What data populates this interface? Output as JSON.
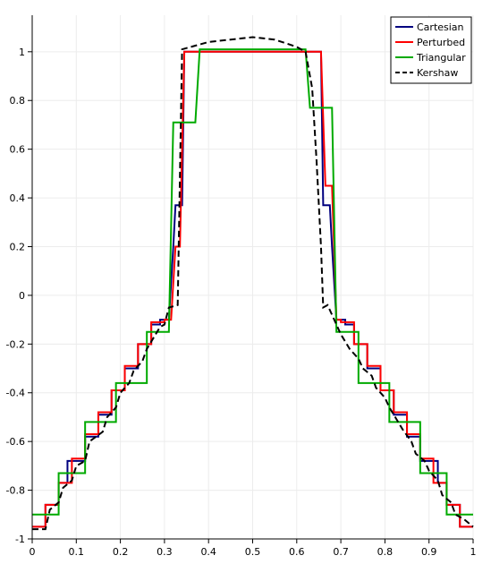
{
  "chart_data": {
    "type": "line",
    "title": "",
    "xlabel": "",
    "ylabel": "",
    "xlim": [
      0,
      1
    ],
    "ylim": [
      -1,
      1.15
    ],
    "x_ticks": [
      0,
      0.1,
      0.2,
      0.3,
      0.4,
      0.5,
      0.6,
      0.7,
      0.8,
      0.9,
      1
    ],
    "x_tick_labels": [
      "0",
      "0.1",
      "0.2",
      "0.3",
      "0.4",
      "0.5",
      "0.6",
      "0.7",
      "0.8",
      "0.9",
      "1"
    ],
    "y_ticks": [
      -1,
      -0.8,
      -0.6,
      -0.4,
      -0.2,
      0,
      0.2,
      0.4,
      0.6,
      0.8,
      1
    ],
    "y_tick_labels": [
      "-1",
      "-0.8",
      "-0.6",
      "-0.4",
      "-0.2",
      "0",
      "0.2",
      "0.4",
      "0.6",
      "0.8",
      "1"
    ],
    "grid": true,
    "legend_position": "top-right",
    "series": [
      {
        "name": "Cartesian",
        "color": "#00007f",
        "dash": "solid",
        "points": [
          [
            0,
            -0.95
          ],
          [
            0.03,
            -0.95
          ],
          [
            0.03,
            -0.86
          ],
          [
            0.06,
            -0.86
          ],
          [
            0.06,
            -0.77
          ],
          [
            0.08,
            -0.77
          ],
          [
            0.08,
            -0.68
          ],
          [
            0.12,
            -0.68
          ],
          [
            0.12,
            -0.58
          ],
          [
            0.15,
            -0.58
          ],
          [
            0.15,
            -0.49
          ],
          [
            0.18,
            -0.49
          ],
          [
            0.18,
            -0.39
          ],
          [
            0.21,
            -0.39
          ],
          [
            0.21,
            -0.3
          ],
          [
            0.24,
            -0.3
          ],
          [
            0.24,
            -0.2
          ],
          [
            0.27,
            -0.2
          ],
          [
            0.27,
            -0.12
          ],
          [
            0.29,
            -0.12
          ],
          [
            0.29,
            -0.1
          ],
          [
            0.31,
            -0.1
          ],
          [
            0.32,
            0.2
          ],
          [
            0.325,
            0.37
          ],
          [
            0.34,
            0.37
          ],
          [
            0.345,
            1.0
          ],
          [
            0.655,
            1.0
          ],
          [
            0.66,
            0.37
          ],
          [
            0.675,
            0.37
          ],
          [
            0.68,
            0.2
          ],
          [
            0.69,
            -0.1
          ],
          [
            0.71,
            -0.1
          ],
          [
            0.71,
            -0.12
          ],
          [
            0.73,
            -0.12
          ],
          [
            0.73,
            -0.2
          ],
          [
            0.76,
            -0.2
          ],
          [
            0.76,
            -0.3
          ],
          [
            0.79,
            -0.3
          ],
          [
            0.79,
            -0.39
          ],
          [
            0.82,
            -0.39
          ],
          [
            0.82,
            -0.49
          ],
          [
            0.85,
            -0.49
          ],
          [
            0.85,
            -0.58
          ],
          [
            0.88,
            -0.58
          ],
          [
            0.88,
            -0.68
          ],
          [
            0.92,
            -0.68
          ],
          [
            0.92,
            -0.77
          ],
          [
            0.94,
            -0.77
          ],
          [
            0.94,
            -0.86
          ],
          [
            0.97,
            -0.86
          ],
          [
            0.97,
            -0.95
          ],
          [
            1,
            -0.95
          ]
        ]
      },
      {
        "name": "Perturbed",
        "color": "#ff0000",
        "dash": "solid",
        "points": [
          [
            0,
            -0.95
          ],
          [
            0.03,
            -0.95
          ],
          [
            0.03,
            -0.86
          ],
          [
            0.06,
            -0.86
          ],
          [
            0.06,
            -0.77
          ],
          [
            0.09,
            -0.77
          ],
          [
            0.09,
            -0.67
          ],
          [
            0.12,
            -0.67
          ],
          [
            0.12,
            -0.57
          ],
          [
            0.15,
            -0.57
          ],
          [
            0.15,
            -0.48
          ],
          [
            0.18,
            -0.48
          ],
          [
            0.18,
            -0.39
          ],
          [
            0.21,
            -0.39
          ],
          [
            0.21,
            -0.29
          ],
          [
            0.24,
            -0.29
          ],
          [
            0.24,
            -0.2
          ],
          [
            0.27,
            -0.2
          ],
          [
            0.27,
            -0.11
          ],
          [
            0.3,
            -0.11
          ],
          [
            0.3,
            -0.1
          ],
          [
            0.315,
            -0.1
          ],
          [
            0.325,
            0.2
          ],
          [
            0.335,
            0.2
          ],
          [
            0.345,
            1.0
          ],
          [
            0.655,
            1.0
          ],
          [
            0.665,
            0.45
          ],
          [
            0.68,
            0.45
          ],
          [
            0.69,
            -0.1
          ],
          [
            0.7,
            -0.1
          ],
          [
            0.7,
            -0.11
          ],
          [
            0.73,
            -0.11
          ],
          [
            0.73,
            -0.2
          ],
          [
            0.76,
            -0.2
          ],
          [
            0.76,
            -0.29
          ],
          [
            0.79,
            -0.29
          ],
          [
            0.79,
            -0.39
          ],
          [
            0.82,
            -0.39
          ],
          [
            0.82,
            -0.48
          ],
          [
            0.85,
            -0.48
          ],
          [
            0.85,
            -0.57
          ],
          [
            0.88,
            -0.57
          ],
          [
            0.88,
            -0.67
          ],
          [
            0.91,
            -0.67
          ],
          [
            0.91,
            -0.77
          ],
          [
            0.94,
            -0.77
          ],
          [
            0.94,
            -0.86
          ],
          [
            0.97,
            -0.86
          ],
          [
            0.97,
            -0.95
          ],
          [
            1,
            -0.95
          ]
        ]
      },
      {
        "name": "Triangular",
        "color": "#00aa00",
        "dash": "solid",
        "points": [
          [
            0,
            -0.9
          ],
          [
            0.06,
            -0.9
          ],
          [
            0.06,
            -0.73
          ],
          [
            0.12,
            -0.73
          ],
          [
            0.12,
            -0.52
          ],
          [
            0.19,
            -0.52
          ],
          [
            0.19,
            -0.36
          ],
          [
            0.26,
            -0.36
          ],
          [
            0.26,
            -0.15
          ],
          [
            0.31,
            -0.15
          ],
          [
            0.32,
            0.71
          ],
          [
            0.37,
            0.71
          ],
          [
            0.38,
            1.01
          ],
          [
            0.62,
            1.01
          ],
          [
            0.63,
            0.77
          ],
          [
            0.68,
            0.77
          ],
          [
            0.69,
            -0.15
          ],
          [
            0.74,
            -0.15
          ],
          [
            0.74,
            -0.36
          ],
          [
            0.81,
            -0.36
          ],
          [
            0.81,
            -0.52
          ],
          [
            0.88,
            -0.52
          ],
          [
            0.88,
            -0.73
          ],
          [
            0.94,
            -0.73
          ],
          [
            0.94,
            -0.9
          ],
          [
            1,
            -0.9
          ]
        ]
      },
      {
        "name": "Kershaw",
        "color": "#000000",
        "dash": "dashed",
        "points": [
          [
            0,
            -0.96
          ],
          [
            0.03,
            -0.96
          ],
          [
            0.04,
            -0.88
          ],
          [
            0.06,
            -0.85
          ],
          [
            0.07,
            -0.79
          ],
          [
            0.09,
            -0.76
          ],
          [
            0.1,
            -0.7
          ],
          [
            0.12,
            -0.68
          ],
          [
            0.13,
            -0.6
          ],
          [
            0.16,
            -0.56
          ],
          [
            0.17,
            -0.5
          ],
          [
            0.19,
            -0.46
          ],
          [
            0.2,
            -0.4
          ],
          [
            0.22,
            -0.36
          ],
          [
            0.23,
            -0.31
          ],
          [
            0.25,
            -0.27
          ],
          [
            0.26,
            -0.22
          ],
          [
            0.28,
            -0.16
          ],
          [
            0.29,
            -0.13
          ],
          [
            0.3,
            -0.12
          ],
          [
            0.31,
            -0.05
          ],
          [
            0.33,
            -0.04
          ],
          [
            0.34,
            1.01
          ],
          [
            0.36,
            1.02
          ],
          [
            0.4,
            1.04
          ],
          [
            0.45,
            1.05
          ],
          [
            0.5,
            1.06
          ],
          [
            0.55,
            1.05
          ],
          [
            0.6,
            1.02
          ],
          [
            0.62,
            1.0
          ],
          [
            0.635,
            0.85
          ],
          [
            0.645,
            0.55
          ],
          [
            0.655,
            0.2
          ],
          [
            0.66,
            -0.05
          ],
          [
            0.67,
            -0.04
          ],
          [
            0.69,
            -0.12
          ],
          [
            0.7,
            -0.16
          ],
          [
            0.71,
            -0.19
          ],
          [
            0.72,
            -0.22
          ],
          [
            0.74,
            -0.26
          ],
          [
            0.75,
            -0.3
          ],
          [
            0.77,
            -0.33
          ],
          [
            0.78,
            -0.38
          ],
          [
            0.8,
            -0.42
          ],
          [
            0.81,
            -0.46
          ],
          [
            0.83,
            -0.52
          ],
          [
            0.84,
            -0.55
          ],
          [
            0.86,
            -0.6
          ],
          [
            0.87,
            -0.65
          ],
          [
            0.89,
            -0.68
          ],
          [
            0.9,
            -0.72
          ],
          [
            0.92,
            -0.76
          ],
          [
            0.93,
            -0.82
          ],
          [
            0.95,
            -0.85
          ],
          [
            0.96,
            -0.9
          ],
          [
            0.98,
            -0.92
          ],
          [
            1,
            -0.95
          ]
        ]
      }
    ]
  }
}
